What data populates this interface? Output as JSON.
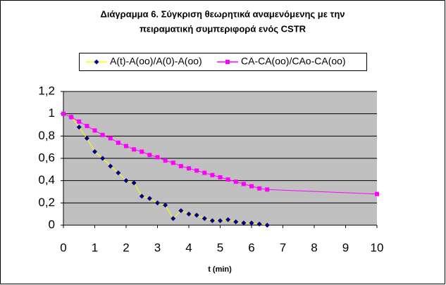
{
  "chart_data": {
    "type": "line",
    "title": [
      "Διάγραμμα 6. Σύγκριση θεωρητικά αναμενόμενης με την",
      "πειραματική συμπεριφορά ενός CSTR"
    ],
    "x_label": "t (min)",
    "xlim": [
      0,
      10
    ],
    "xticks": [
      0,
      1,
      2,
      3,
      4,
      5,
      6,
      7,
      8,
      9,
      10
    ],
    "ylim": [
      0,
      1.2
    ],
    "yticks": [
      0,
      {
        "value": 0.2,
        "label": "0,2"
      },
      {
        "value": 0.4,
        "label": "0,4"
      },
      {
        "value": 0.6,
        "label": "0,6"
      },
      {
        "value": 0.8,
        "label": "0,8"
      },
      1,
      {
        "value": 1.2,
        "label": "1,2"
      }
    ],
    "grid": true,
    "legend": "top",
    "series": [
      {
        "name": "A(t)-A(oo)/A(0)-A(oo)",
        "color": "#000080",
        "line_color": "#ffff00",
        "marker": "diamond",
        "x": [
          0,
          0.25,
          0.5,
          0.75,
          1,
          1.25,
          1.5,
          1.75,
          2,
          2.25,
          2.5,
          2.75,
          3,
          3.25,
          3.5,
          3.75,
          4,
          4.25,
          4.5,
          4.75,
          5,
          5.25,
          5.5,
          5.75,
          6,
          6.25,
          6.5
        ],
        "values": [
          1,
          0.97,
          0.88,
          0.78,
          0.66,
          0.6,
          0.53,
          0.47,
          0.4,
          0.38,
          0.26,
          0.24,
          0.2,
          0.18,
          0.06,
          0.13,
          0.1,
          0.09,
          0.06,
          0.04,
          0.04,
          0.05,
          0.03,
          0.02,
          0.02,
          0.01,
          0
        ]
      },
      {
        "name": "CA-CA(oo)/CAo-CA(oo)",
        "color": "#ff00ff",
        "line_color": "#ff00ff",
        "marker": "square",
        "x": [
          0,
          0.25,
          0.5,
          0.75,
          1,
          1.25,
          1.5,
          1.75,
          2,
          2.25,
          2.5,
          2.75,
          3,
          3.25,
          3.5,
          3.75,
          4,
          4.25,
          4.5,
          4.75,
          5,
          5.25,
          5.5,
          5.75,
          6,
          6.25,
          6.5,
          10
        ],
        "values": [
          1,
          0.97,
          0.93,
          0.89,
          0.85,
          0.81,
          0.78,
          0.74,
          0.71,
          0.68,
          0.66,
          0.63,
          0.61,
          0.58,
          0.56,
          0.53,
          0.51,
          0.49,
          0.47,
          0.45,
          0.43,
          0.41,
          0.39,
          0.37,
          0.35,
          0.33,
          0.32,
          0.28
        ]
      }
    ]
  }
}
